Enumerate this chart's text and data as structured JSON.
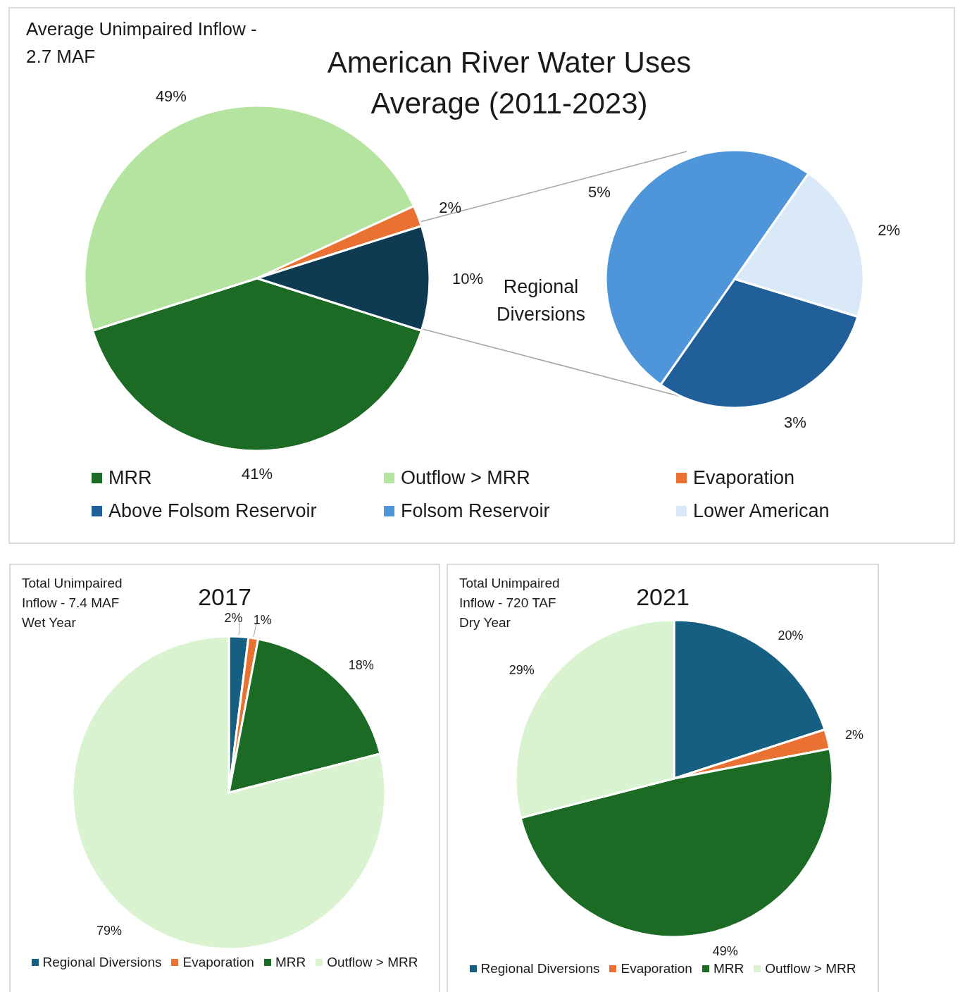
{
  "chart_data": [
    {
      "type": "pie",
      "title": "American River Water Uses Average (2011-2023)",
      "annotations": [
        "Average Unimpaired Inflow - 2.7 MAF"
      ],
      "categories": [
        "MRR",
        "Outflow > MRR",
        "Evaporation",
        null
      ],
      "values": [
        41,
        49,
        2,
        10
      ],
      "value_labels": [
        "41%",
        "49%",
        "2%",
        "10%"
      ],
      "colors": [
        "#1b6b25",
        "#b5e4a0",
        "#e97132",
        "#0e3a52"
      ],
      "legend": "bottom"
    },
    {
      "type": "pie",
      "title": "Regional Diversions",
      "categories": [
        "Above Folsom Reservoir",
        "Folsom Reservoir",
        "Lower American"
      ],
      "values": [
        3,
        5,
        2
      ],
      "value_labels": [
        "3%",
        "5%",
        "2%"
      ],
      "colors": [
        "#215f9a",
        "#4e95d9",
        "#dae9f8"
      ],
      "legend": "bottom"
    },
    {
      "type": "pie",
      "title": "2017",
      "annotations": [
        "Total Unimpaired Inflow - 7.4 MAF Wet Year"
      ],
      "categories": [
        "Regional Diversions",
        "Evaporation",
        "MRR",
        "Outflow > MRR"
      ],
      "values": [
        2,
        1,
        18,
        79
      ],
      "value_labels": [
        "2%",
        "1%",
        "18%",
        "79%"
      ],
      "colors": [
        "#156082",
        "#e97132",
        "#1b6b25",
        "#d9f2d0"
      ],
      "legend": "bottom"
    },
    {
      "type": "pie",
      "title": "2021",
      "annotations": [
        "Total Unimpaired Inflow - 720 TAF Dry Year"
      ],
      "categories": [
        "Regional Diversions",
        "Evaporation",
        "MRR",
        "Outflow > MRR"
      ],
      "values": [
        20,
        2,
        49,
        29
      ],
      "value_labels": [
        "20%",
        "2%",
        "49%",
        "29%"
      ],
      "colors": [
        "#156082",
        "#e97132",
        "#1b6b25",
        "#d9f2d0"
      ],
      "legend": "bottom"
    }
  ]
}
